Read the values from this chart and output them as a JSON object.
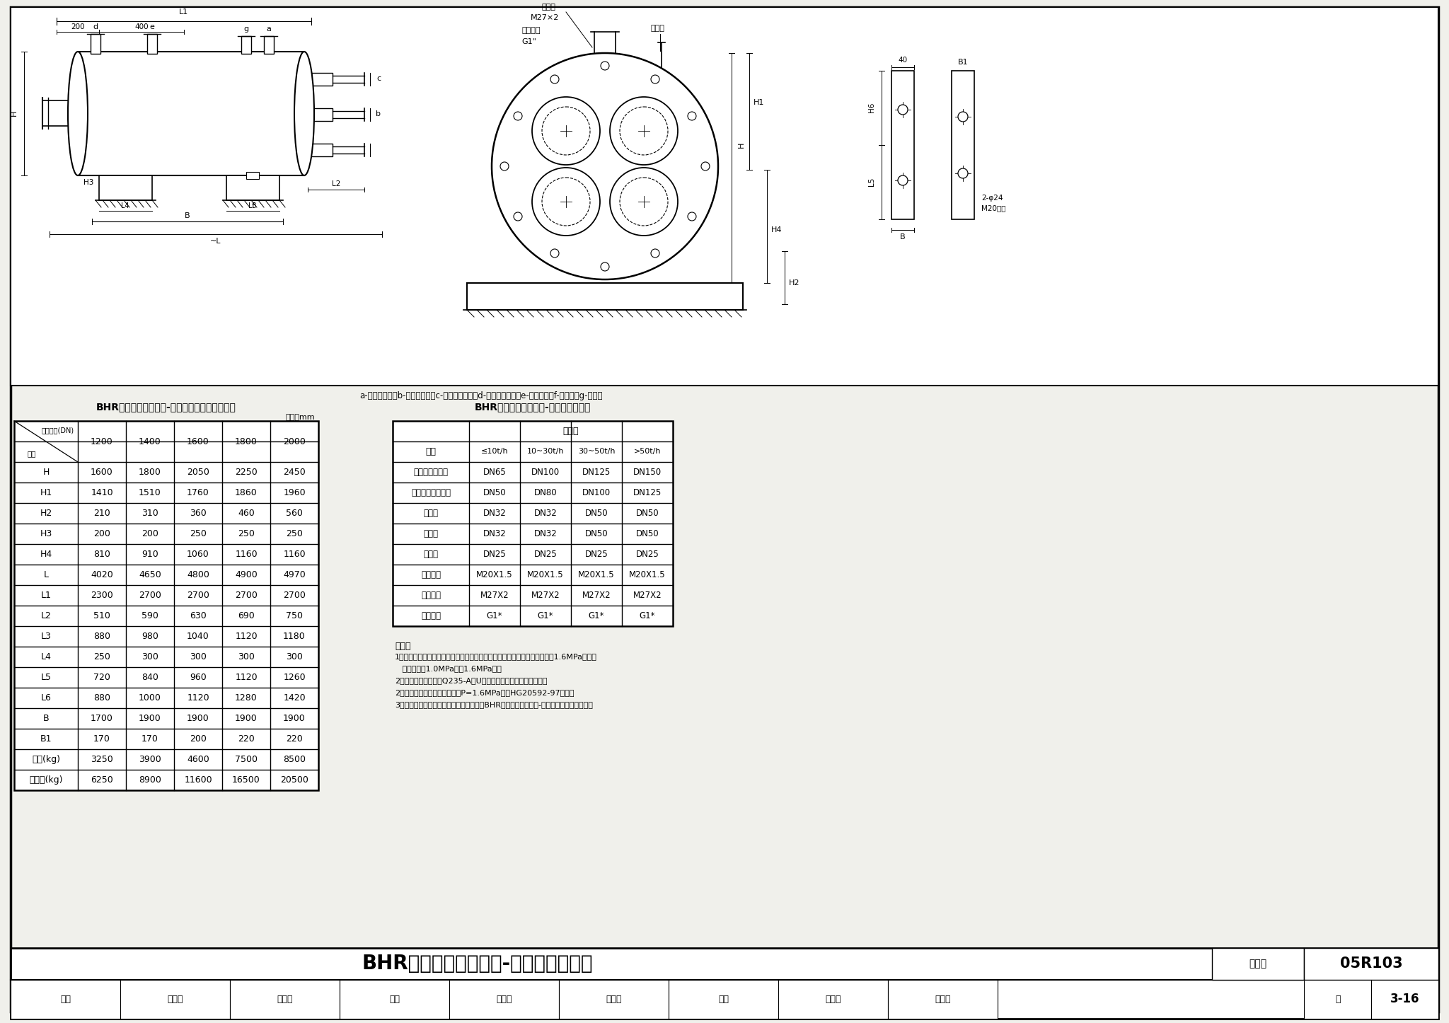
{
  "bg_color": "#f0f0eb",
  "page_title": "BHR卧式即热容积式水-水换热器安装图",
  "page_number": "3-16",
  "atlas_number": "05R103",
  "drawing_label": "图集号",
  "table1_title": "BHR卧式即热容积式水-水换热器结构尺寸及重量",
  "table1_unit": "单位：mm",
  "table1_header_row1": "公称直径(DN)",
  "table1_header_row2": "项目",
  "table1_columns": [
    "1200",
    "1400",
    "1600",
    "1800",
    "2000"
  ],
  "table1_rows": [
    [
      "H",
      "1600",
      "1800",
      "2050",
      "2250",
      "2450"
    ],
    [
      "H1",
      "1410",
      "1510",
      "1760",
      "1860",
      "1960"
    ],
    [
      "H2",
      "210",
      "310",
      "360",
      "460",
      "560"
    ],
    [
      "H3",
      "200",
      "200",
      "250",
      "250",
      "250"
    ],
    [
      "H4",
      "810",
      "910",
      "1060",
      "1160",
      "1160"
    ],
    [
      "L",
      "4020",
      "4650",
      "4800",
      "4900",
      "4970"
    ],
    [
      "L1",
      "2300",
      "2700",
      "2700",
      "2700",
      "2700"
    ],
    [
      "L2",
      "510",
      "590",
      "630",
      "690",
      "750"
    ],
    [
      "L3",
      "880",
      "980",
      "1040",
      "1120",
      "1180"
    ],
    [
      "L4",
      "250",
      "300",
      "300",
      "300",
      "300"
    ],
    [
      "L5",
      "720",
      "840",
      "960",
      "1120",
      "1260"
    ],
    [
      "L6",
      "880",
      "1000",
      "1120",
      "1280",
      "1420"
    ],
    [
      "B",
      "1700",
      "1900",
      "1900",
      "1900",
      "1900"
    ],
    [
      "B1",
      "170",
      "170",
      "200",
      "220",
      "220"
    ],
    [
      "净重(kg)",
      "3250",
      "3900",
      "4600",
      "7500",
      "8500"
    ],
    [
      "充水重(kg)",
      "6250",
      "8900",
      "11600",
      "16500",
      "20500"
    ]
  ],
  "table2_title": "BHR卧式即热容积式水-水换热器管口表",
  "table2_header_col": "接管",
  "table2_header_output": "出水量",
  "table2_flow_cols": [
    "≤10t/h",
    "10~30t/h",
    "30~50t/h",
    ">50t/h"
  ],
  "table2_rows": [
    [
      "加热介质进出口",
      "DN65",
      "DN100",
      "DN125",
      "DN150"
    ],
    [
      "被加热介质进出口",
      "DN50",
      "DN80",
      "DN100",
      "DN125"
    ],
    [
      "安全阀",
      "DN32",
      "DN32",
      "DN50",
      "DN50"
    ],
    [
      "排污口",
      "DN32",
      "DN32",
      "DN50",
      "DN50"
    ],
    [
      "排气口",
      "DN25",
      "DN25",
      "DN25",
      "DN25"
    ],
    [
      "压力表口",
      "M20X1.5",
      "M20X1.5",
      "M20X1.5",
      "M20X1.5"
    ],
    [
      "温度计口",
      "M27X2",
      "M27X2",
      "M27X2",
      "M27X2"
    ],
    [
      "温控仪口",
      "G1*",
      "G1*",
      "G1*",
      "G1*"
    ]
  ],
  "notes_title": "说明：",
  "notes": [
    "1．适用范围：用于热水供应系统，热介质方高温水，换热器管程工作压力为1.6MPa，壳程",
    "   工作压力为1.0MPa（或1.6MPa）。",
    "2．换热器壳体材料为Q235-A，U型管材料为厚壁不锈钢波纹管。",
    "2．管道与换热器连接处的法兰P=1.6MPa，按HG20592-97配制。",
    "3．本图依据北京市伟业供热设备有限公司BHR卧式即热容积式水-水换热器技术资料编制。"
  ],
  "drawing_desc_label": "a-加热水入口；b-加热水出口；c-被加热水入口；d-被加热水出口；e-安全阀口；f-排污口；g-排气口",
  "footer_left": [
    "审核",
    "牛小化",
    "心小化",
    "校对",
    "郭奇志",
    "邵奇高",
    "设计",
    "朱国升",
    "床阿打"
  ],
  "footer_page_label": "页",
  "footer_page_num": "3-16"
}
